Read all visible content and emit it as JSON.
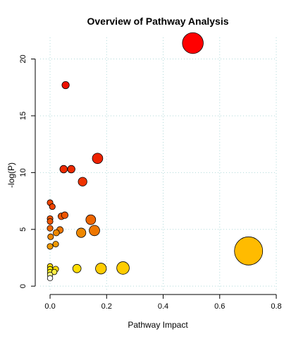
{
  "chart_data": {
    "type": "scatter",
    "title": "Overview of Pathway Analysis",
    "xlabel": "Pathway Impact",
    "ylabel": "-log(P)",
    "xlim": [
      -0.035,
      0.8
    ],
    "ylim": [
      -0.3,
      21.9
    ],
    "x_ticks": [
      0.0,
      0.2,
      0.4,
      0.6,
      0.8
    ],
    "y_ticks": [
      0,
      5,
      10,
      15,
      20
    ],
    "x_tick_labels": [
      "0.0",
      "0.2",
      "0.4",
      "0.6",
      "0.8"
    ],
    "y_tick_labels": [
      "0",
      "5",
      "10",
      "15",
      "20"
    ],
    "grid": true,
    "legend": "none",
    "points": [
      {
        "x": 0.505,
        "y": 21.4,
        "size": 1.0,
        "color": "#ff0000"
      },
      {
        "x": 0.055,
        "y": 17.7,
        "size": 0.35,
        "color": "#ee1100"
      },
      {
        "x": 0.168,
        "y": 11.25,
        "size": 0.5,
        "color": "#ee2200"
      },
      {
        "x": 0.048,
        "y": 10.3,
        "size": 0.36,
        "color": "#ee2a00"
      },
      {
        "x": 0.075,
        "y": 10.3,
        "size": 0.36,
        "color": "#ee2a00"
      },
      {
        "x": 0.115,
        "y": 9.2,
        "size": 0.42,
        "color": "#ee3300"
      },
      {
        "x": 0.0,
        "y": 7.35,
        "size": 0.28,
        "color": "#ee4400"
      },
      {
        "x": 0.008,
        "y": 7.0,
        "size": 0.28,
        "color": "#ee4400"
      },
      {
        "x": 0.04,
        "y": 6.15,
        "size": 0.32,
        "color": "#ee5500"
      },
      {
        "x": 0.052,
        "y": 6.25,
        "size": 0.32,
        "color": "#ee5500"
      },
      {
        "x": 0.0,
        "y": 5.95,
        "size": 0.28,
        "color": "#ee5500"
      },
      {
        "x": 0.0,
        "y": 5.7,
        "size": 0.28,
        "color": "#ee5500"
      },
      {
        "x": 0.144,
        "y": 5.85,
        "size": 0.47,
        "color": "#ee6600"
      },
      {
        "x": 0.0,
        "y": 5.1,
        "size": 0.28,
        "color": "#ee6600"
      },
      {
        "x": 0.035,
        "y": 4.95,
        "size": 0.32,
        "color": "#ee7700"
      },
      {
        "x": 0.157,
        "y": 4.9,
        "size": 0.5,
        "color": "#ee7700"
      },
      {
        "x": 0.11,
        "y": 4.7,
        "size": 0.45,
        "color": "#ee8800"
      },
      {
        "x": 0.022,
        "y": 4.7,
        "size": 0.3,
        "color": "#ee8800"
      },
      {
        "x": 0.002,
        "y": 4.35,
        "size": 0.28,
        "color": "#ee8800"
      },
      {
        "x": 0.02,
        "y": 3.7,
        "size": 0.28,
        "color": "#ee9900"
      },
      {
        "x": 0.0,
        "y": 3.5,
        "size": 0.28,
        "color": "#ee9900"
      },
      {
        "x": 0.702,
        "y": 3.1,
        "size": 1.35,
        "color": "#ffbb00"
      },
      {
        "x": 0.258,
        "y": 1.6,
        "size": 0.6,
        "color": "#ffcc00"
      },
      {
        "x": 0.18,
        "y": 1.55,
        "size": 0.52,
        "color": "#ffcc00"
      },
      {
        "x": 0.095,
        "y": 1.55,
        "size": 0.4,
        "color": "#ffdd00"
      },
      {
        "x": 0.02,
        "y": 1.5,
        "size": 0.28,
        "color": "#ffdd00"
      },
      {
        "x": 0.0,
        "y": 1.75,
        "size": 0.26,
        "color": "#ffdd00"
      },
      {
        "x": 0.0,
        "y": 1.5,
        "size": 0.26,
        "color": "#ffee00"
      },
      {
        "x": 0.0,
        "y": 1.25,
        "size": 0.26,
        "color": "#ffee22"
      },
      {
        "x": 0.015,
        "y": 1.25,
        "size": 0.26,
        "color": "#ffee44"
      },
      {
        "x": 0.0,
        "y": 1.0,
        "size": 0.26,
        "color": "#ffff88"
      },
      {
        "x": 0.0,
        "y": 0.7,
        "size": 0.26,
        "color": "#ffffff"
      }
    ]
  }
}
